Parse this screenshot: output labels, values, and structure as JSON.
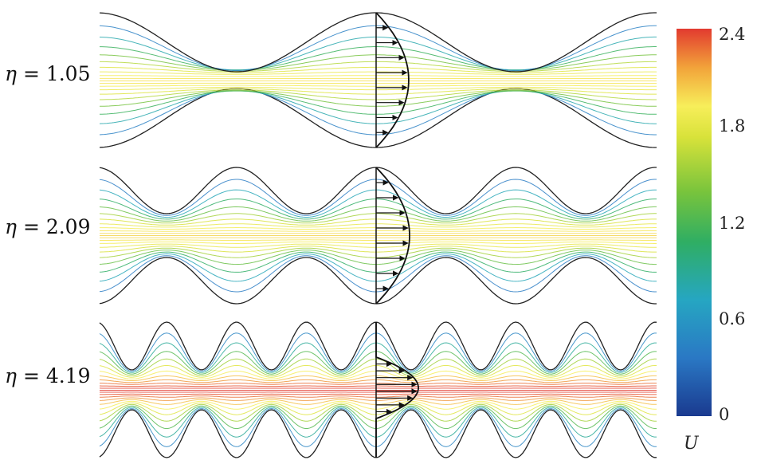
{
  "panels": [
    {
      "symbol": "η",
      "value": "= 1.05",
      "eta": 1.05,
      "periods": 2,
      "core_u": 1.85
    },
    {
      "symbol": "η",
      "value": "= 2.09",
      "eta": 2.09,
      "periods": 4,
      "core_u": 1.9
    },
    {
      "symbol": "η",
      "value": "= 4.19",
      "eta": 4.19,
      "periods": 8,
      "core_u": 2.4
    }
  ],
  "colorbar": {
    "label": "U",
    "ticks": [
      "2.4",
      "1.8",
      "1.2",
      "0.6",
      "0"
    ],
    "min": 0,
    "max": 2.4,
    "colors": [
      "#1a3a8f",
      "#2a78c4",
      "#26a6c2",
      "#2fae63",
      "#79c43c",
      "#d8e23a",
      "#f7ee5a",
      "#f2a33a",
      "#e23a2f"
    ]
  }
}
